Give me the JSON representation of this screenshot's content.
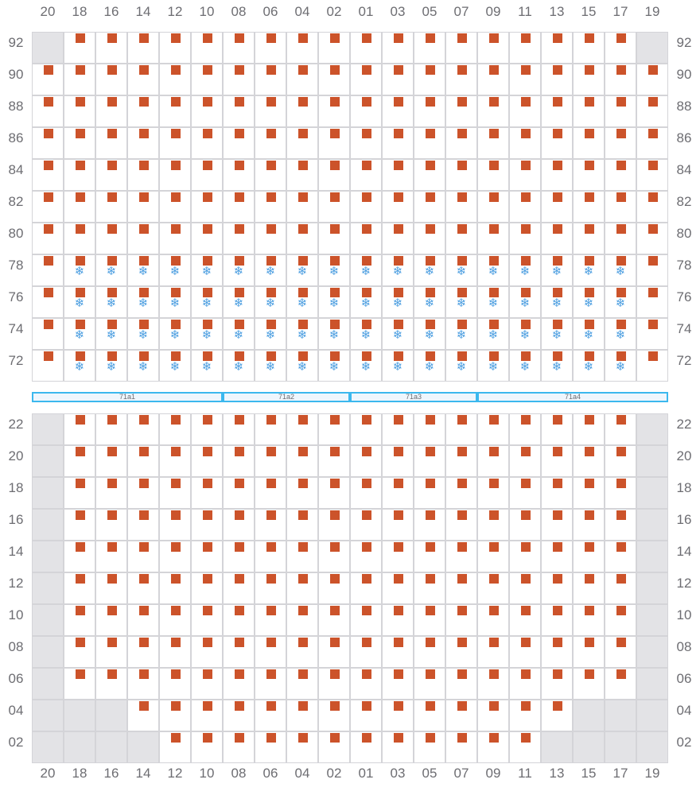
{
  "columns": [
    "20",
    "18",
    "16",
    "14",
    "12",
    "10",
    "08",
    "06",
    "04",
    "02",
    "01",
    "03",
    "05",
    "07",
    "09",
    "11",
    "13",
    "15",
    "17",
    "19"
  ],
  "colors": {
    "seat": "#cc532a",
    "unavailable": "#e3e3e6",
    "snowflake": "#4a9de0",
    "zone_border": "#3bb8ee"
  },
  "seat_icon": "orange-square-seat",
  "cold_icon": "snowflake-icon",
  "snowflake_glyph": "❄",
  "upper_section": {
    "rows": [
      {
        "label": "92",
        "unavailable": [
          "20",
          "19"
        ],
        "cold": []
      },
      {
        "label": "90",
        "unavailable": [],
        "cold": []
      },
      {
        "label": "88",
        "unavailable": [],
        "cold": []
      },
      {
        "label": "86",
        "unavailable": [],
        "cold": []
      },
      {
        "label": "84",
        "unavailable": [],
        "cold": []
      },
      {
        "label": "82",
        "unavailable": [],
        "cold": []
      },
      {
        "label": "80",
        "unavailable": [],
        "cold": []
      },
      {
        "label": "78",
        "unavailable": [],
        "cold": "inner"
      },
      {
        "label": "76",
        "unavailable": [],
        "cold": "inner"
      },
      {
        "label": "74",
        "unavailable": [],
        "cold": "inner"
      },
      {
        "label": "72",
        "unavailable": [],
        "cold": "inner"
      }
    ]
  },
  "zones": [
    {
      "label": "71a1",
      "from": "20",
      "to": "10"
    },
    {
      "label": "71a2",
      "from": "08",
      "to": "02"
    },
    {
      "label": "71a3",
      "from": "01",
      "to": "07"
    },
    {
      "label": "71a4",
      "from": "09",
      "to": "19"
    }
  ],
  "lower_section": {
    "rows": [
      {
        "label": "22",
        "unavailable": [
          "20",
          "19"
        ],
        "cold": []
      },
      {
        "label": "20",
        "unavailable": [
          "20",
          "19"
        ],
        "cold": []
      },
      {
        "label": "18",
        "unavailable": [
          "20",
          "19"
        ],
        "cold": []
      },
      {
        "label": "16",
        "unavailable": [
          "20",
          "19"
        ],
        "cold": []
      },
      {
        "label": "14",
        "unavailable": [
          "20",
          "19"
        ],
        "cold": []
      },
      {
        "label": "12",
        "unavailable": [
          "20",
          "19"
        ],
        "cold": []
      },
      {
        "label": "10",
        "unavailable": [
          "20",
          "19"
        ],
        "cold": []
      },
      {
        "label": "08",
        "unavailable": [
          "20",
          "19"
        ],
        "cold": []
      },
      {
        "label": "06",
        "unavailable": [
          "20",
          "19"
        ],
        "cold": []
      },
      {
        "label": "04",
        "unavailable": [
          "20",
          "18",
          "16",
          "15",
          "17",
          "19"
        ],
        "cold": []
      },
      {
        "label": "02",
        "unavailable": [
          "20",
          "18",
          "16",
          "14",
          "13",
          "15",
          "17",
          "19"
        ],
        "cold": []
      }
    ]
  }
}
